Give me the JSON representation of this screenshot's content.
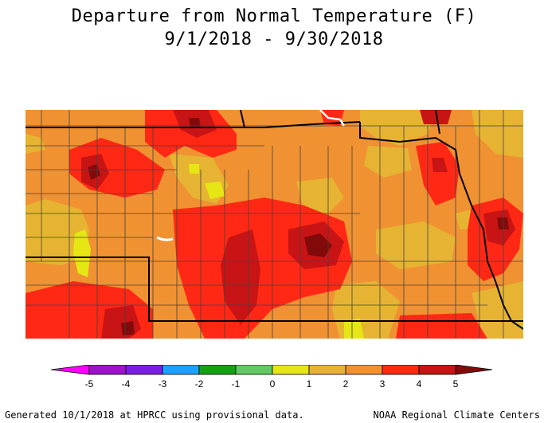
{
  "title": "Departure from Normal Temperature (F)",
  "subtitle": "9/1/2018 - 9/30/2018",
  "legend": {
    "labels": [
      "-5",
      "-4",
      "-3",
      "-2",
      "-1",
      "0",
      "1",
      "2",
      "3",
      "4",
      "5"
    ],
    "colors": [
      "#ff00ff",
      "#9b14c8",
      "#7a1ee6",
      "#1ea0ff",
      "#16a016",
      "#64c864",
      "#e6e614",
      "#e6b432",
      "#f09132",
      "#ff2814",
      "#c81414",
      "#820a0a"
    ]
  },
  "map_colors": {
    "yellow": "#e6e614",
    "gold": "#e6b432",
    "orange": "#f09132",
    "red": "#ff2814",
    "darkred": "#c81414",
    "maroon": "#820a0a"
  },
  "footer_left": "Generated 10/1/2018 at HPRCC using provisional data.",
  "footer_right": "NOAA Regional Climate Centers"
}
